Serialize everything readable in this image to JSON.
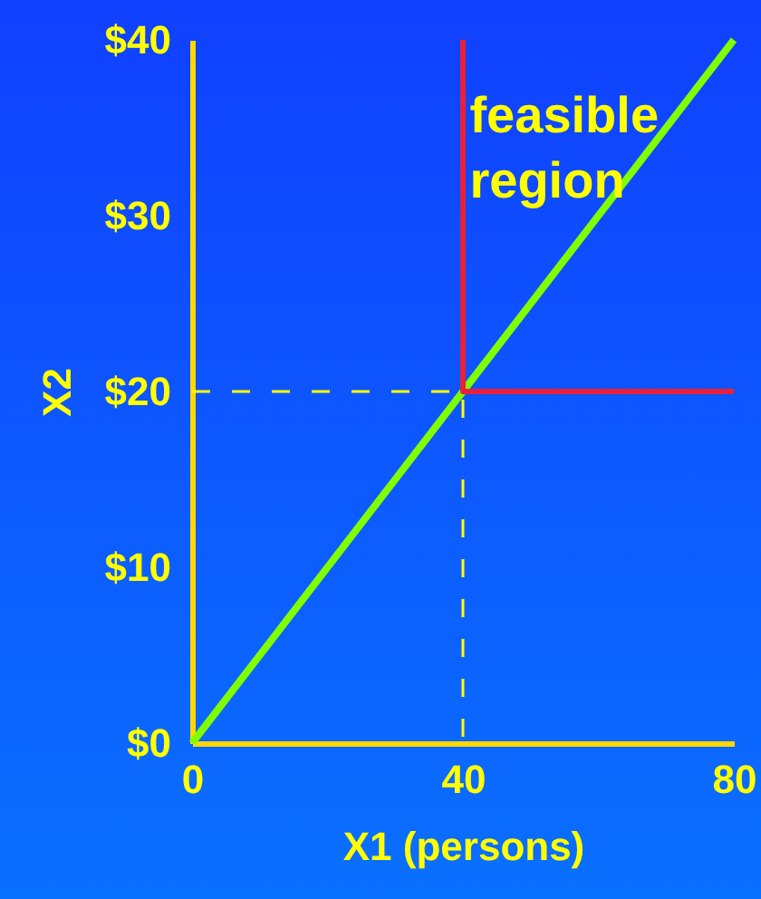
{
  "chart_data": {
    "type": "line",
    "xlabel": "X1 (persons)",
    "ylabel": "X2",
    "xlim": [
      0,
      80
    ],
    "xticks": [
      0,
      40,
      80
    ],
    "ylim": [
      0,
      40
    ],
    "yticks": [
      {
        "value": 0,
        "label": "$0"
      },
      {
        "value": 10,
        "label": "$10"
      },
      {
        "value": 20,
        "label": "$20"
      },
      {
        "value": 30,
        "label": "$30"
      },
      {
        "value": 40,
        "label": "$40"
      }
    ],
    "grid": false,
    "marker": "none",
    "series": [
      {
        "color": "#80ff00",
        "line_style": "solid",
        "x": [
          0,
          80
        ],
        "values": [
          0,
          40
        ]
      },
      {
        "color": "#e8203c",
        "line_style": "solid",
        "x": [
          40,
          40,
          80
        ],
        "values": [
          40,
          20,
          20
        ]
      },
      {
        "color": "#ffff00",
        "line_style": "dashed",
        "x": [
          0,
          40,
          40
        ],
        "values": [
          20,
          20,
          0
        ]
      }
    ],
    "annotations": [
      {
        "text": "feasible region",
        "x": 41,
        "y": 37
      }
    ]
  }
}
